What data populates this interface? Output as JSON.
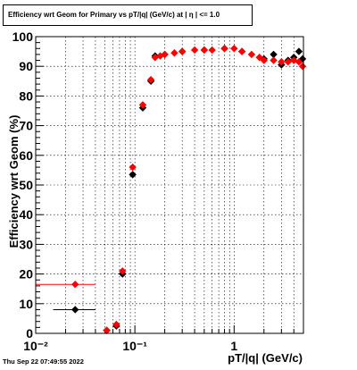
{
  "title": "Efficiency wrt Geom for Primary vs pT/|q| (GeV/c) at |  η | <= 1.0",
  "timestamp": "Thu Sep 22 07:49:55 2022",
  "chart_data": {
    "type": "scatter",
    "xlabel": "pT/|q| (GeV/c)",
    "ylabel": "Efficiency wrt Geom (%)",
    "xscale": "log",
    "xlim": [
      0.01,
      5
    ],
    "ylim": [
      0,
      100
    ],
    "grid": true,
    "x_tick_labels": [
      "10⁻²",
      "10⁻¹",
      "1"
    ],
    "y_tick_labels": [
      "0",
      "10",
      "20",
      "30",
      "40",
      "50",
      "60",
      "70",
      "80",
      "90",
      "100"
    ],
    "colors": {
      "black_series": "#000000",
      "red_series": "#ff0000"
    },
    "series": [
      {
        "marker": "diamond",
        "color": "#000000",
        "x": [
          0.025,
          0.052,
          0.065,
          0.075,
          0.095,
          0.12,
          0.145,
          0.16,
          0.2,
          0.3,
          0.5,
          0.8,
          1.2,
          2.0,
          2.5,
          3.0,
          3.5,
          4.0,
          4.5,
          4.9
        ],
        "y": [
          8,
          1,
          2.5,
          20,
          53.5,
          76,
          85,
          93.5,
          94,
          95,
          95.5,
          96,
          95,
          92.5,
          94,
          90.5,
          92,
          93,
          95,
          92.5
        ],
        "xerr": [
          [
            0.015,
            0.04
          ],
          null,
          null,
          null,
          null,
          null,
          null,
          null,
          null,
          null,
          null,
          null,
          null,
          null,
          null,
          null,
          null,
          null,
          null,
          null
        ]
      },
      {
        "marker": "diamond",
        "color": "#ff0000",
        "x": [
          0.025,
          0.052,
          0.065,
          0.075,
          0.095,
          0.12,
          0.145,
          0.16,
          0.18,
          0.2,
          0.25,
          0.3,
          0.4,
          0.5,
          0.6,
          0.8,
          1.0,
          1.2,
          1.5,
          1.8,
          2.0,
          2.5,
          3.0,
          3.5,
          4.0,
          4.5,
          4.9
        ],
        "y": [
          16.5,
          1,
          3,
          21,
          56,
          77,
          85.5,
          93,
          93.5,
          94,
          94.5,
          95,
          95.5,
          95.5,
          95.5,
          96,
          96,
          95,
          94,
          93,
          92,
          92,
          91.5,
          91.5,
          92,
          91.5,
          90
        ],
        "xerr": [
          [
            0.01,
            0.04
          ],
          null,
          null,
          null,
          null,
          null,
          null,
          null,
          null,
          null,
          null,
          null,
          null,
          null,
          null,
          null,
          null,
          null,
          null,
          null,
          null,
          null,
          null,
          null,
          null,
          null,
          null
        ]
      }
    ]
  }
}
